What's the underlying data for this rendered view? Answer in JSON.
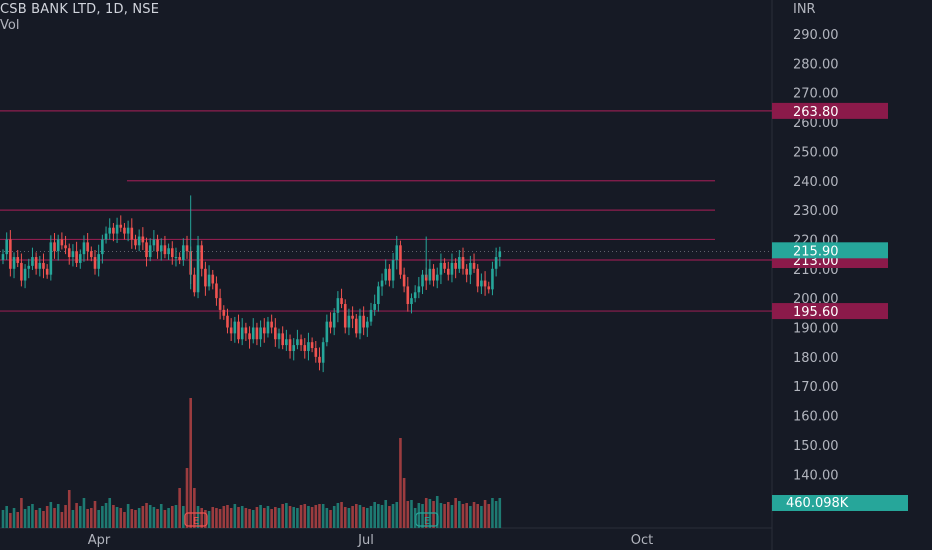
{
  "legend": {
    "title": "CSB BANK LTD, 1D, NSE",
    "volume_label": "Vol"
  },
  "price_axis": {
    "currency": "INR"
  },
  "colors": {
    "background": "#161a25",
    "up": "#26a69a",
    "down": "#ef5350",
    "up_volume": "#1e7a72",
    "down_volume": "#9c3c3f",
    "line": "#8e1e4f",
    "badge": "#8b1a4a",
    "price_badge": "#26a69a",
    "volume_badge": "#26a69a",
    "axis_text": "#b2b5be",
    "divider": "#2a2e39"
  },
  "chart_data": {
    "type": "candlestick",
    "y_ticks": [
      "290.00",
      "280.00",
      "270.00",
      "260.00",
      "250.00",
      "240.00",
      "230.00",
      "220.00",
      "210.00",
      "200.00",
      "190.00",
      "180.00",
      "170.00",
      "160.00",
      "150.00",
      "140.00"
    ],
    "x_ticks": [
      "Apr",
      "Jul",
      "Oct"
    ],
    "y_range": [
      135,
      295
    ],
    "last_price": "215.90",
    "last_volume": "460.098K",
    "price_badges": [
      "263.80",
      "213.00",
      "195.60"
    ],
    "horizontal_lines": [
      {
        "price": 263.8,
        "badge": "263.80"
      },
      {
        "price": 240.0,
        "start": "partial"
      },
      {
        "price": 230.0
      },
      {
        "price": 220.0
      },
      {
        "price": 213.0,
        "badge": "213.00"
      },
      {
        "price": 195.6,
        "badge": "195.60"
      }
    ],
    "events": [
      "E",
      "E"
    ],
    "closes": [
      215,
      220,
      210,
      214,
      212,
      206,
      210,
      211,
      214,
      210,
      212,
      210,
      208,
      219,
      216,
      220,
      218,
      217,
      214,
      216,
      212,
      215,
      219,
      216,
      214,
      210,
      215,
      220,
      222,
      224,
      222,
      225,
      224,
      222,
      224,
      220,
      218,
      221,
      219,
      214,
      218,
      220,
      216,
      218,
      215,
      217,
      214,
      214,
      213,
      218,
      216,
      208,
      202,
      218,
      210,
      204,
      208,
      205,
      200,
      196,
      194,
      190,
      188,
      192,
      186,
      190,
      188,
      186,
      190,
      186,
      190,
      188,
      192,
      190,
      186,
      188,
      184,
      186,
      182,
      184,
      186,
      184,
      182,
      185,
      183,
      180,
      178,
      185,
      192,
      190,
      195,
      200,
      198,
      190,
      194,
      193,
      188,
      194,
      190,
      192,
      196,
      198,
      204,
      206,
      210,
      206,
      213,
      218,
      208,
      204,
      198,
      200,
      202,
      204,
      208,
      206,
      210,
      206,
      208,
      212,
      210,
      208,
      212,
      210,
      214,
      210,
      208,
      212,
      210,
      204,
      206,
      204,
      203,
      210,
      214,
      215.9
    ],
    "volume_scale": [
      0,
      135
    ],
    "volumes": [
      18,
      22,
      15,
      20,
      16,
      30,
      19,
      22,
      24,
      18,
      20,
      17,
      22,
      26,
      20,
      24,
      16,
      23,
      38,
      18,
      25,
      22,
      30,
      19,
      20,
      27,
      18,
      22,
      25,
      30,
      23,
      21,
      20,
      16,
      24,
      19,
      18,
      20,
      22,
      25,
      23,
      21,
      19,
      24,
      18,
      20,
      22,
      23,
      40,
      22,
      60,
      130,
      40,
      22,
      20,
      18,
      17,
      21,
      20,
      19,
      22,
      23,
      20,
      24,
      21,
      22,
      20,
      19,
      18,
      21,
      23,
      20,
      22,
      19,
      21,
      20,
      24,
      25,
      22,
      21,
      20,
      23,
      24,
      22,
      21,
      23,
      24,
      24,
      20,
      18,
      22,
      25,
      26,
      21,
      20,
      22,
      24,
      23,
      21,
      20,
      22,
      26,
      24,
      23,
      28,
      22,
      24,
      26,
      90,
      50,
      27,
      28,
      20,
      25,
      24,
      30,
      29,
      27,
      32,
      25,
      24,
      26,
      23,
      30,
      27,
      24,
      25,
      22,
      26,
      24,
      22,
      28,
      24,
      30,
      27,
      30
    ]
  }
}
